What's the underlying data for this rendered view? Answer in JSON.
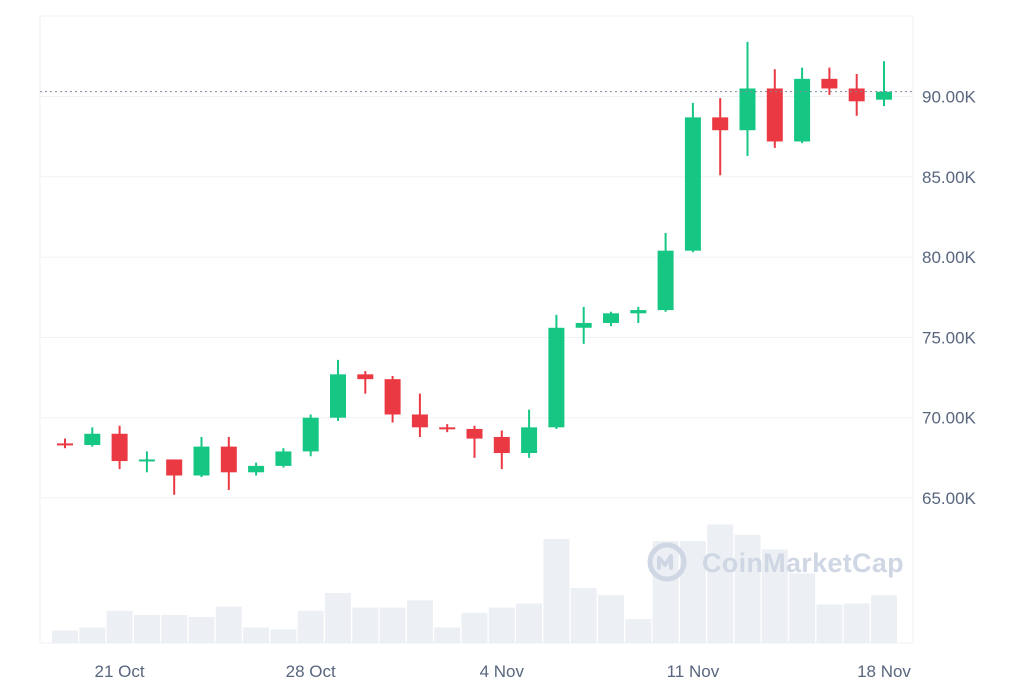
{
  "watermark": {
    "text": "CoinMarketCap",
    "icon": "coinmarketcap-logo-icon"
  },
  "colors": {
    "up": "#16c784",
    "down": "#ea3943",
    "grid": "#eff2f5",
    "volume": "#eceff3",
    "axis_text": "#58667e",
    "reference_line": "#808a9d"
  },
  "chart_data": {
    "type": "candlestick",
    "title": "",
    "xlabel": "",
    "ylabel": "",
    "ylim": [
      62500,
      95000
    ],
    "y_ticks": [
      {
        "value": 65000,
        "label": "65.00K"
      },
      {
        "value": 70000,
        "label": "70.00K"
      },
      {
        "value": 75000,
        "label": "75.00K"
      },
      {
        "value": 80000,
        "label": "80.00K"
      },
      {
        "value": 85000,
        "label": "85.00K"
      },
      {
        "value": 90000,
        "label": "90.00K"
      }
    ],
    "x_ticks": [
      {
        "date": "2024-10-21",
        "label": "21 Oct"
      },
      {
        "date": "2024-10-28",
        "label": "28 Oct"
      },
      {
        "date": "2024-11-04",
        "label": "4 Nov"
      },
      {
        "date": "2024-11-11",
        "label": "11 Nov"
      },
      {
        "date": "2024-11-18",
        "label": "18 Nov"
      }
    ],
    "current_price_line": 90300,
    "grid": true,
    "candles": [
      {
        "date": "2024-10-19",
        "open": 68400,
        "high": 68700,
        "low": 68100,
        "close": 68300
      },
      {
        "date": "2024-10-20",
        "open": 68300,
        "high": 69400,
        "low": 68200,
        "close": 69000
      },
      {
        "date": "2024-10-21",
        "open": 69000,
        "high": 69500,
        "low": 66800,
        "close": 67300
      },
      {
        "date": "2024-10-22",
        "open": 67300,
        "high": 67900,
        "low": 66600,
        "close": 67400
      },
      {
        "date": "2024-10-23",
        "open": 67400,
        "high": 67400,
        "low": 65200,
        "close": 66400
      },
      {
        "date": "2024-10-24",
        "open": 66400,
        "high": 68800,
        "low": 66300,
        "close": 68200
      },
      {
        "date": "2024-10-25",
        "open": 68200,
        "high": 68800,
        "low": 65500,
        "close": 66600
      },
      {
        "date": "2024-10-26",
        "open": 66600,
        "high": 67200,
        "low": 66400,
        "close": 67000
      },
      {
        "date": "2024-10-27",
        "open": 67000,
        "high": 68100,
        "low": 66900,
        "close": 67900
      },
      {
        "date": "2024-10-28",
        "open": 67900,
        "high": 70200,
        "low": 67600,
        "close": 70000
      },
      {
        "date": "2024-10-29",
        "open": 70000,
        "high": 73600,
        "low": 69800,
        "close": 72700
      },
      {
        "date": "2024-10-30",
        "open": 72700,
        "high": 72900,
        "low": 71500,
        "close": 72400
      },
      {
        "date": "2024-10-31",
        "open": 72400,
        "high": 72600,
        "low": 69700,
        "close": 70200
      },
      {
        "date": "2024-11-01",
        "open": 70200,
        "high": 71500,
        "low": 68800,
        "close": 69400
      },
      {
        "date": "2024-11-02",
        "open": 69400,
        "high": 69600,
        "low": 69100,
        "close": 69300
      },
      {
        "date": "2024-11-03",
        "open": 69300,
        "high": 69500,
        "low": 67500,
        "close": 68700
      },
      {
        "date": "2024-11-04",
        "open": 68800,
        "high": 69200,
        "low": 66800,
        "close": 67800
      },
      {
        "date": "2024-11-05",
        "open": 67800,
        "high": 70500,
        "low": 67500,
        "close": 69400
      },
      {
        "date": "2024-11-06",
        "open": 69400,
        "high": 76400,
        "low": 69300,
        "close": 75600
      },
      {
        "date": "2024-11-07",
        "open": 75600,
        "high": 76900,
        "low": 74600,
        "close": 75900
      },
      {
        "date": "2024-11-08",
        "open": 75900,
        "high": 76600,
        "low": 75700,
        "close": 76500
      },
      {
        "date": "2024-11-09",
        "open": 76500,
        "high": 76900,
        "low": 75900,
        "close": 76700
      },
      {
        "date": "2024-11-10",
        "open": 76700,
        "high": 81500,
        "low": 76600,
        "close": 80400
      },
      {
        "date": "2024-11-11",
        "open": 80400,
        "high": 89600,
        "low": 80300,
        "close": 88700
      },
      {
        "date": "2024-11-12",
        "open": 88700,
        "high": 89900,
        "low": 85100,
        "close": 87900
      },
      {
        "date": "2024-11-13",
        "open": 87900,
        "high": 93400,
        "low": 86300,
        "close": 90500
      },
      {
        "date": "2024-11-14",
        "open": 90500,
        "high": 91700,
        "low": 86800,
        "close": 87200
      },
      {
        "date": "2024-11-15",
        "open": 87200,
        "high": 91800,
        "low": 87100,
        "close": 91100
      },
      {
        "date": "2024-11-16",
        "open": 91100,
        "high": 91800,
        "low": 90100,
        "close": 90500
      },
      {
        "date": "2024-11-17",
        "open": 90500,
        "high": 91400,
        "low": 88800,
        "close": 89700
      },
      {
        "date": "2024-11-18",
        "open": 89800,
        "high": 92200,
        "low": 89400,
        "close": 90300
      }
    ],
    "volume_relative": [
      0.12,
      0.15,
      0.31,
      0.27,
      0.27,
      0.25,
      0.35,
      0.15,
      0.13,
      0.31,
      0.48,
      0.34,
      0.34,
      0.41,
      0.15,
      0.29,
      0.34,
      0.38,
      1.0,
      0.53,
      0.46,
      0.23,
      0.98,
      0.98,
      1.14,
      1.04,
      0.9,
      0.67,
      0.37,
      0.38,
      0.46
    ]
  }
}
